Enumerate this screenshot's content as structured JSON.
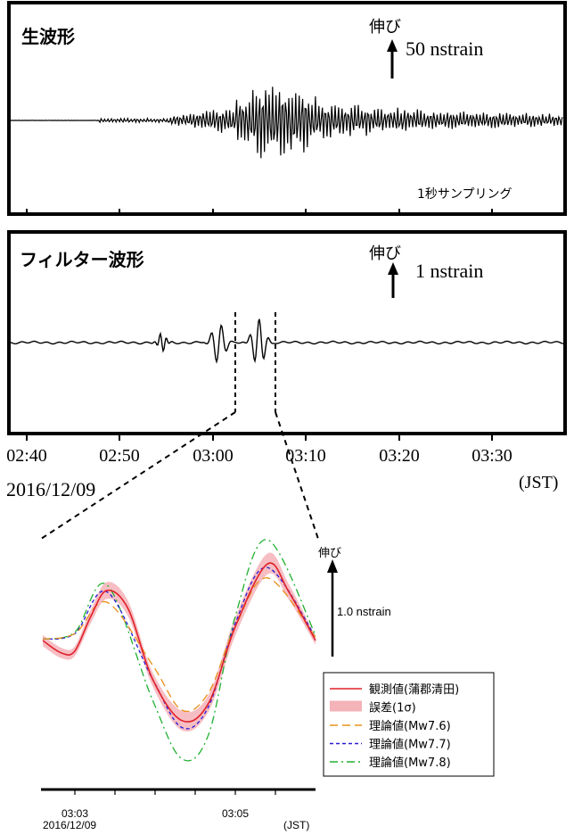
{
  "colors": {
    "observed": "#e0202a",
    "error_band": "#f4b3b8",
    "mw76": "#e8901c",
    "mw77": "#2a1ad8",
    "mw78": "#20b030",
    "trace": "#000000"
  },
  "panel_raw": {
    "title": "生波形",
    "stretch_label": "伸び",
    "scale_label": "50 nstrain",
    "sampling_label": "1秒サンプリング"
  },
  "panel_filtered": {
    "title": "フィルター波形",
    "stretch_label": "伸び",
    "scale_label": "1 nstrain"
  },
  "time_axis": {
    "ticks": [
      "02:40",
      "02:50",
      "03:00",
      "03:10",
      "03:20",
      "03:30"
    ],
    "date": "2016/12/09",
    "unit": "(JST)"
  },
  "chart_data": {
    "type": "line",
    "title": "",
    "xlabel": "",
    "ylabel": "",
    "stretch_label": "伸び",
    "scale_label": "1.0 nstrain",
    "x_ticks": [
      "03:03",
      "03:05"
    ],
    "date": "2016/12/09",
    "x_unit": "(JST)",
    "x_range": [
      "03:02:36",
      "03:06:00"
    ],
    "legend_position": "bottom-right",
    "series": [
      {
        "name": "観測値(蒲郡清田)",
        "style": "solid",
        "color": "#e0202a",
        "x": [
          "03:02:36",
          "03:02:50",
          "03:03:00",
          "03:03:12",
          "03:03:24",
          "03:03:40",
          "03:03:58",
          "03:04:20",
          "03:04:40",
          "03:05:00",
          "03:05:24",
          "03:05:40",
          "03:06:00"
        ],
        "values": [
          0.0,
          -0.18,
          -0.15,
          0.35,
          0.72,
          0.45,
          -0.55,
          -1.15,
          -0.9,
          0.2,
          1.1,
          0.7,
          0.0
        ]
      },
      {
        "name": "誤差(1σ)",
        "style": "band",
        "color": "#f4b3b8",
        "x": [
          "03:02:36",
          "03:03:00",
          "03:03:24",
          "03:03:58",
          "03:04:20",
          "03:04:40",
          "03:05:24",
          "03:06:00"
        ],
        "values": [
          0.08,
          0.07,
          0.12,
          0.1,
          0.14,
          0.12,
          0.15,
          0.06
        ]
      },
      {
        "name": "理論値(Mw7.6)",
        "style": "long-dash",
        "color": "#e8901c",
        "x": [
          "03:02:36",
          "03:03:00",
          "03:03:24",
          "03:03:58",
          "03:04:20",
          "03:04:40",
          "03:05:00",
          "03:05:24",
          "03:06:00"
        ],
        "values": [
          0.02,
          0.1,
          0.55,
          -0.35,
          -1.0,
          -0.75,
          0.2,
          0.9,
          0.05
        ]
      },
      {
        "name": "理論値(Mw7.7)",
        "style": "short-dash",
        "color": "#2a1ad8",
        "x": [
          "03:02:36",
          "03:03:00",
          "03:03:24",
          "03:03:58",
          "03:04:20",
          "03:04:40",
          "03:05:00",
          "03:05:24",
          "03:06:00"
        ],
        "values": [
          0.02,
          0.1,
          0.7,
          -0.55,
          -1.25,
          -0.95,
          0.25,
          1.05,
          0.05
        ]
      },
      {
        "name": "理論値(Mw7.8)",
        "style": "dash-dot",
        "color": "#20b030",
        "x": [
          "03:02:36",
          "03:03:00",
          "03:03:24",
          "03:03:58",
          "03:04:20",
          "03:04:40",
          "03:05:00",
          "03:05:24",
          "03:06:00"
        ],
        "values": [
          0.02,
          0.12,
          0.8,
          -0.85,
          -1.7,
          -1.35,
          0.35,
          1.45,
          0.08
        ]
      }
    ]
  }
}
